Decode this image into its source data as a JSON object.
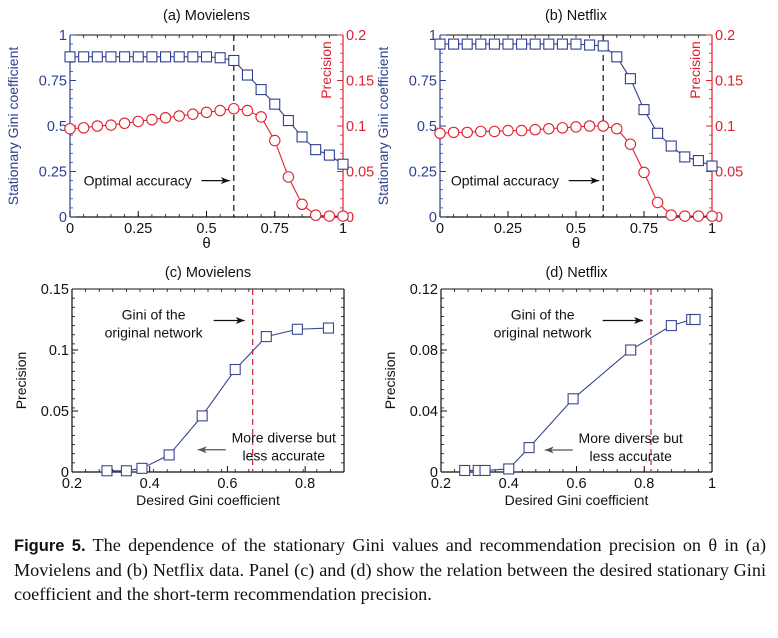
{
  "colors": {
    "gini": "#2e3f8f",
    "precision": "#e0202e",
    "line_c_d": "#3a4790",
    "dashed_black": "#111111",
    "dashed_red": "#c8203a",
    "axis": "#111111"
  },
  "chart_data": [
    {
      "id": "a",
      "type": "line",
      "title": "(a) Movielens",
      "xlabel": "θ",
      "ylabel": "Stationary Gini coefficient",
      "y2label": "Precision",
      "xlim": [
        0,
        1
      ],
      "ylim": [
        0,
        1
      ],
      "y2lim": [
        0,
        0.2
      ],
      "xticks": [
        "0",
        "0.25",
        "0.5",
        "0.75",
        "1"
      ],
      "xtick_values": [
        0,
        0.25,
        0.5,
        0.75,
        1
      ],
      "yticks": [
        "0",
        "0.25",
        "0.5",
        "0.75",
        "1"
      ],
      "ytick_values": [
        0,
        0.25,
        0.5,
        0.75,
        1
      ],
      "y2ticks": [
        "0",
        "0.05",
        "0.1",
        "0.15",
        "0.2"
      ],
      "y2tick_values": [
        0,
        0.05,
        0.1,
        0.15,
        0.2
      ],
      "x": [
        0,
        0.05,
        0.1,
        0.15,
        0.2,
        0.25,
        0.3,
        0.35,
        0.4,
        0.45,
        0.5,
        0.55,
        0.6,
        0.65,
        0.7,
        0.75,
        0.8,
        0.85,
        0.9,
        0.95,
        1.0
      ],
      "series": [
        {
          "name": "Stationary Gini coefficient",
          "axis": "left",
          "marker": "square",
          "values": [
            0.88,
            0.88,
            0.88,
            0.88,
            0.88,
            0.88,
            0.88,
            0.88,
            0.88,
            0.88,
            0.88,
            0.875,
            0.86,
            0.78,
            0.7,
            0.62,
            0.53,
            0.44,
            0.37,
            0.34,
            0.29
          ]
        },
        {
          "name": "Precision",
          "axis": "right",
          "marker": "circle",
          "values": [
            0.097,
            0.098,
            0.1,
            0.101,
            0.103,
            0.105,
            0.107,
            0.109,
            0.111,
            0.113,
            0.115,
            0.117,
            0.119,
            0.117,
            0.11,
            0.084,
            0.044,
            0.014,
            0.002,
            0.001,
            0.001
          ]
        }
      ],
      "vline": {
        "x": 0.6,
        "style": "dashed-black"
      },
      "annotation": {
        "text": "Optimal accuracy",
        "arrow": "right",
        "x": 0.05,
        "y": 0.2
      }
    },
    {
      "id": "b",
      "type": "line",
      "title": "(b) Netflix",
      "xlabel": "θ",
      "ylabel": "Stationary Gini coefficient",
      "y2label": "Precision",
      "xlim": [
        0,
        1
      ],
      "ylim": [
        0,
        1
      ],
      "y2lim": [
        0,
        0.2
      ],
      "xticks": [
        "0",
        "0.25",
        "0.5",
        "0.75",
        "1"
      ],
      "xtick_values": [
        0,
        0.25,
        0.5,
        0.75,
        1
      ],
      "yticks": [
        "0",
        "0.25",
        "0.5",
        "0.75",
        "1"
      ],
      "ytick_values": [
        0,
        0.25,
        0.5,
        0.75,
        1
      ],
      "y2ticks": [
        "0",
        "0.05",
        "0.1",
        "0.15",
        "0.2"
      ],
      "y2tick_values": [
        0,
        0.05,
        0.1,
        0.15,
        0.2
      ],
      "x": [
        0,
        0.05,
        0.1,
        0.15,
        0.2,
        0.25,
        0.3,
        0.35,
        0.4,
        0.45,
        0.5,
        0.55,
        0.6,
        0.65,
        0.7,
        0.75,
        0.8,
        0.85,
        0.9,
        0.95,
        1.0
      ],
      "series": [
        {
          "name": "Stationary Gini coefficient",
          "axis": "left",
          "marker": "square",
          "values": [
            0.95,
            0.95,
            0.95,
            0.95,
            0.95,
            0.95,
            0.95,
            0.95,
            0.95,
            0.95,
            0.95,
            0.945,
            0.94,
            0.88,
            0.76,
            0.59,
            0.46,
            0.39,
            0.33,
            0.31,
            0.28
          ]
        },
        {
          "name": "Precision",
          "axis": "right",
          "marker": "circle",
          "values": [
            0.092,
            0.093,
            0.093,
            0.094,
            0.094,
            0.095,
            0.095,
            0.096,
            0.097,
            0.098,
            0.099,
            0.1,
            0.1,
            0.097,
            0.08,
            0.049,
            0.016,
            0.002,
            0.001,
            0.001,
            0.001
          ]
        }
      ],
      "vline": {
        "x": 0.6,
        "style": "dashed-black"
      },
      "annotation": {
        "text": "Optimal accuracy",
        "arrow": "right",
        "x": 0.04,
        "y": 0.2
      }
    },
    {
      "id": "c",
      "type": "line",
      "title": "(c) Movielens",
      "xlabel": "Desired Gini coefficient",
      "ylabel": "Precision",
      "xlim": [
        0.2,
        0.9
      ],
      "ylim": [
        0,
        0.15
      ],
      "xticks": [
        "0.2",
        "0.4",
        "0.6",
        "0.8"
      ],
      "xtick_values": [
        0.2,
        0.4,
        0.6,
        0.8
      ],
      "yticks": [
        "0",
        "0.05",
        "0.1",
        "0.15"
      ],
      "ytick_values": [
        0,
        0.05,
        0.1,
        0.15
      ],
      "series": [
        {
          "name": "Precision",
          "marker": "square",
          "x": [
            0.29,
            0.34,
            0.38,
            0.45,
            0.535,
            0.62,
            0.7,
            0.78,
            0.86
          ],
          "values": [
            0.001,
            0.001,
            0.003,
            0.014,
            0.046,
            0.084,
            0.111,
            0.117,
            0.118
          ]
        }
      ],
      "vline": {
        "x": 0.665,
        "style": "dashed-red"
      },
      "annotations": [
        {
          "lines": [
            "Gini of the",
            "original network"
          ],
          "arrow": "right",
          "x": 0.41,
          "y": 0.125
        },
        {
          "lines": [
            "More diverse but",
            "less accurate"
          ],
          "arrow": "left",
          "x": 0.745,
          "y": 0.024
        }
      ]
    },
    {
      "id": "d",
      "type": "line",
      "title": "(d) Netflix",
      "xlabel": "Desired Gini coefficient",
      "ylabel": "Precision",
      "xlim": [
        0.2,
        1.0
      ],
      "ylim": [
        0,
        0.12
      ],
      "xticks": [
        "0.2",
        "0.4",
        "0.6",
        "0.8",
        "1"
      ],
      "xtick_values": [
        0.2,
        0.4,
        0.6,
        0.8,
        1.0
      ],
      "yticks": [
        "0",
        "0.04",
        "0.08",
        "0.12"
      ],
      "ytick_values": [
        0,
        0.04,
        0.08,
        0.12
      ],
      "series": [
        {
          "name": "Precision",
          "marker": "square",
          "x": [
            0.27,
            0.31,
            0.33,
            0.4,
            0.46,
            0.59,
            0.76,
            0.88,
            0.94,
            0.95
          ],
          "values": [
            0.001,
            0.001,
            0.001,
            0.002,
            0.016,
            0.048,
            0.08,
            0.096,
            0.1,
            0.1
          ]
        }
      ],
      "vline": {
        "x": 0.82,
        "style": "dashed-red"
      },
      "annotations": [
        {
          "lines": [
            "Gini of the",
            "original network"
          ],
          "arrow": "right",
          "x": 0.5,
          "y": 0.1
        },
        {
          "lines": [
            "More diverse but",
            "less accurate"
          ],
          "arrow": "left",
          "x": 0.76,
          "y": 0.019
        }
      ]
    }
  ],
  "caption": {
    "lead": "Figure 5.",
    "text": "The dependence of the stationary Gini values and recommendation precision on θ in (a) Movielens and (b) Netflix data. Panel (c) and (d) show the relation between the desired stationary Gini coefficient and the short-term recommendation precision."
  }
}
